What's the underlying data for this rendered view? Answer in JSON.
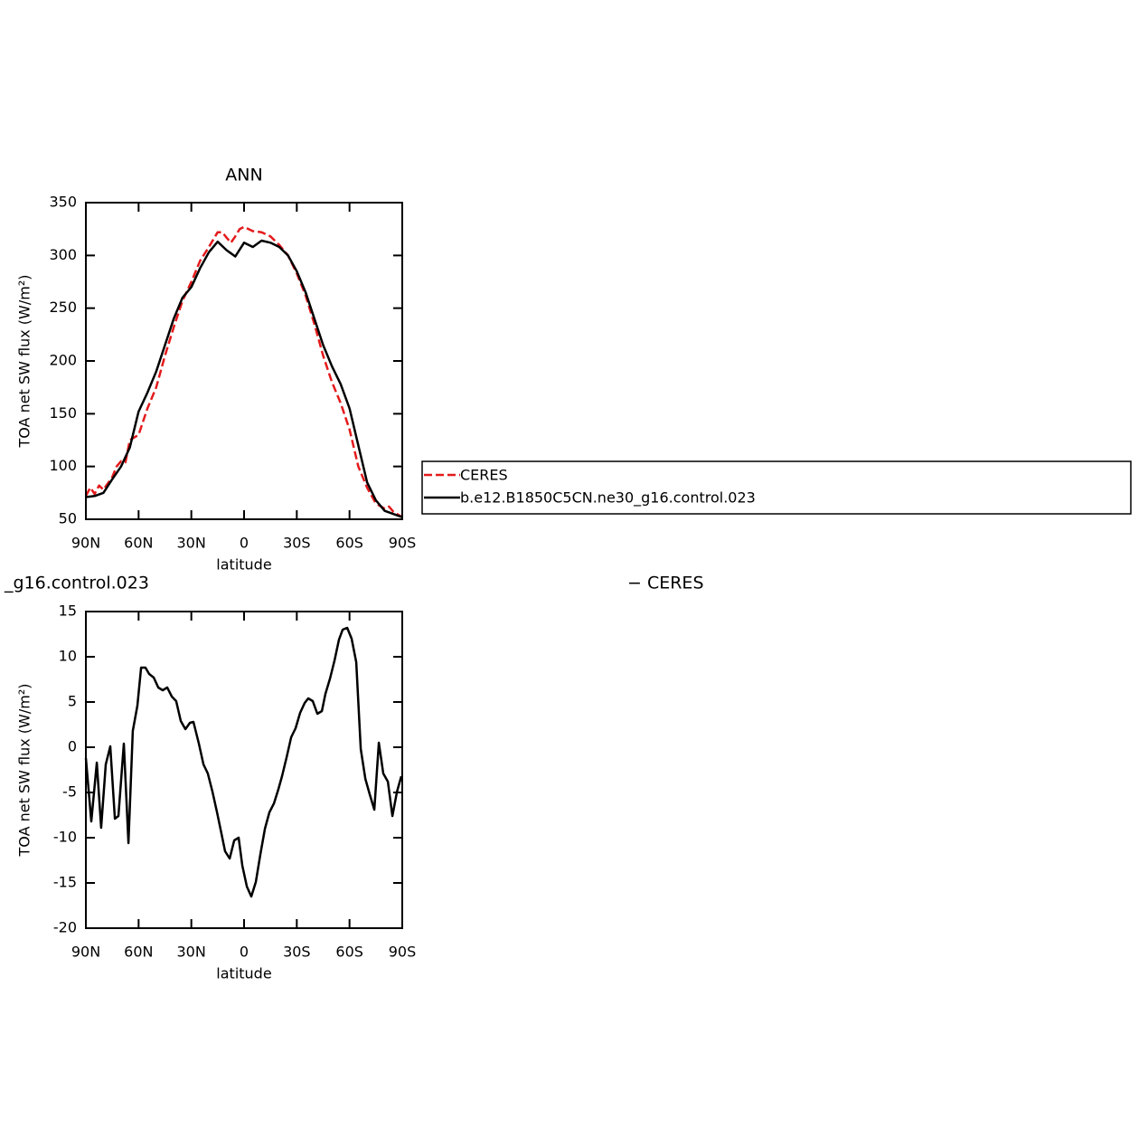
{
  "chart_data": [
    {
      "type": "line",
      "title": "ANN",
      "xlabel": "latitude",
      "ylabel": "TOA net SW flux (W/m²)",
      "xlim": [
        90,
        -90
      ],
      "xticks": [
        {
          "value": 90,
          "label": "90N"
        },
        {
          "value": 60,
          "label": "60N"
        },
        {
          "value": 30,
          "label": "30N"
        },
        0,
        {
          "value": -30,
          "label": "30S"
        },
        {
          "value": -60,
          "label": "60S"
        },
        {
          "value": -90,
          "label": "90S"
        }
      ],
      "ylim": [
        50,
        350
      ],
      "yticks": [
        50,
        100,
        150,
        200,
        250,
        300,
        350
      ],
      "legend": "outside-right",
      "series": [
        {
          "name": "CERES",
          "color": "#e41a1c",
          "dash": true,
          "x": [
            90,
            87.5,
            85,
            82.5,
            80,
            75,
            72.5,
            70,
            67.5,
            65,
            60,
            55,
            50,
            45,
            40,
            35,
            30,
            25,
            20,
            15,
            12.5,
            7.5,
            5,
            2.5,
            0,
            -5,
            -10,
            -15,
            -20,
            -25,
            -30,
            -35,
            -40,
            -45,
            -50,
            -55,
            -60,
            -65,
            -70,
            -75,
            -80,
            -82.5,
            -85,
            -90
          ],
          "values": [
            72,
            80,
            74,
            82,
            78,
            90,
            100,
            105,
            104,
            125,
            130,
            155,
            175,
            205,
            232,
            257,
            275,
            295,
            308,
            322,
            322,
            312,
            318,
            325,
            327,
            323,
            322,
            318,
            310,
            300,
            283,
            262,
            235,
            205,
            180,
            160,
            135,
            100,
            80,
            65,
            60,
            62,
            57,
            52
          ]
        },
        {
          "name": "b.e12.B1850C5CN.ne30_g16.control.023",
          "color": "#000000",
          "dash": false,
          "x": [
            90,
            85,
            80,
            75,
            70,
            65,
            60,
            55,
            50,
            45,
            40,
            35,
            30,
            25,
            20,
            15,
            10,
            5,
            0,
            -5,
            -10,
            -15,
            -20,
            -25,
            -30,
            -35,
            -40,
            -45,
            -50,
            -55,
            -60,
            -65,
            -70,
            -75,
            -80,
            -85,
            -90
          ],
          "values": [
            71,
            72,
            75,
            88,
            100,
            118,
            152,
            170,
            190,
            215,
            240,
            260,
            270,
            288,
            303,
            313,
            305,
            299,
            312,
            308,
            314,
            312,
            308,
            300,
            285,
            265,
            240,
            215,
            195,
            178,
            155,
            120,
            85,
            68,
            58,
            55,
            52
          ]
        }
      ]
    },
    {
      "type": "line",
      "title": [
        "_g16.control.023",
        "− CERES"
      ],
      "xlabel": "latitude",
      "ylabel": "TOA net SW flux (W/m²)",
      "xlim": [
        90,
        -90
      ],
      "xticks": [
        {
          "value": 90,
          "label": "90N"
        },
        {
          "value": 60,
          "label": "60N"
        },
        {
          "value": 30,
          "label": "30N"
        },
        0,
        {
          "value": -30,
          "label": "30S"
        },
        {
          "value": -60,
          "label": "60S"
        },
        {
          "value": -90,
          "label": "90S"
        }
      ],
      "ylim": [
        -20,
        15
      ],
      "yticks": [
        -20,
        -15,
        -10,
        -5,
        0,
        5,
        10,
        15
      ],
      "series": [
        {
          "color": "#000000",
          "dash": false,
          "x": [
            90,
            86.9,
            83.8,
            81.3,
            78.7,
            76.1,
            73.5,
            71.5,
            68.4,
            65.8,
            63.3,
            60.7,
            58.6,
            56.1,
            54.0,
            51.4,
            48.8,
            46.3,
            43.7,
            41.1,
            38.6,
            36.0,
            33.4,
            30.8,
            28.8,
            25.7,
            23.1,
            20.6,
            18.0,
            15.4,
            12.8,
            10.8,
            8.2,
            5.6,
            3.1,
            1.0,
            -1.6,
            -4.1,
            -6.7,
            -9.3,
            -11.9,
            -14.4,
            -17.0,
            -19.6,
            -21.6,
            -24.2,
            -26.8,
            -29.3,
            -31.9,
            -34.5,
            -36.5,
            -39.1,
            -41.7,
            -44.3,
            -46.3,
            -48.9,
            -51.5,
            -54.0,
            -56.1,
            -58.7,
            -61.2,
            -63.8,
            -66.4,
            -69.0,
            -71.5,
            -74.1,
            -76.7,
            -79.2,
            -81.8,
            -84.4,
            -87.0,
            -89.5
          ],
          "values": [
            -1.2,
            -8.2,
            -1.7,
            -8.9,
            -1.9,
            0.1,
            -7.9,
            -7.6,
            0.4,
            -10.6,
            1.8,
            4.6,
            8.8,
            8.8,
            8.1,
            7.7,
            6.6,
            6.3,
            6.6,
            5.6,
            5.1,
            2.9,
            2.0,
            2.7,
            2.8,
            0.4,
            -1.9,
            -2.9,
            -4.9,
            -7.2,
            -9.6,
            -11.5,
            -12.3,
            -10.3,
            -10.0,
            -13.1,
            -15.4,
            -16.5,
            -14.9,
            -11.8,
            -9.0,
            -7.2,
            -6.2,
            -4.6,
            -3.2,
            -1.1,
            1.1,
            2.1,
            3.8,
            4.9,
            5.4,
            5.1,
            3.7,
            4.0,
            5.9,
            7.6,
            9.6,
            11.9,
            13.0,
            13.2,
            12.0,
            9.4,
            -0.2,
            -3.5,
            -5.2,
            -6.9,
            0.5,
            -2.9,
            -3.8,
            -7.6,
            -4.9,
            -3.2
          ]
        }
      ]
    }
  ]
}
